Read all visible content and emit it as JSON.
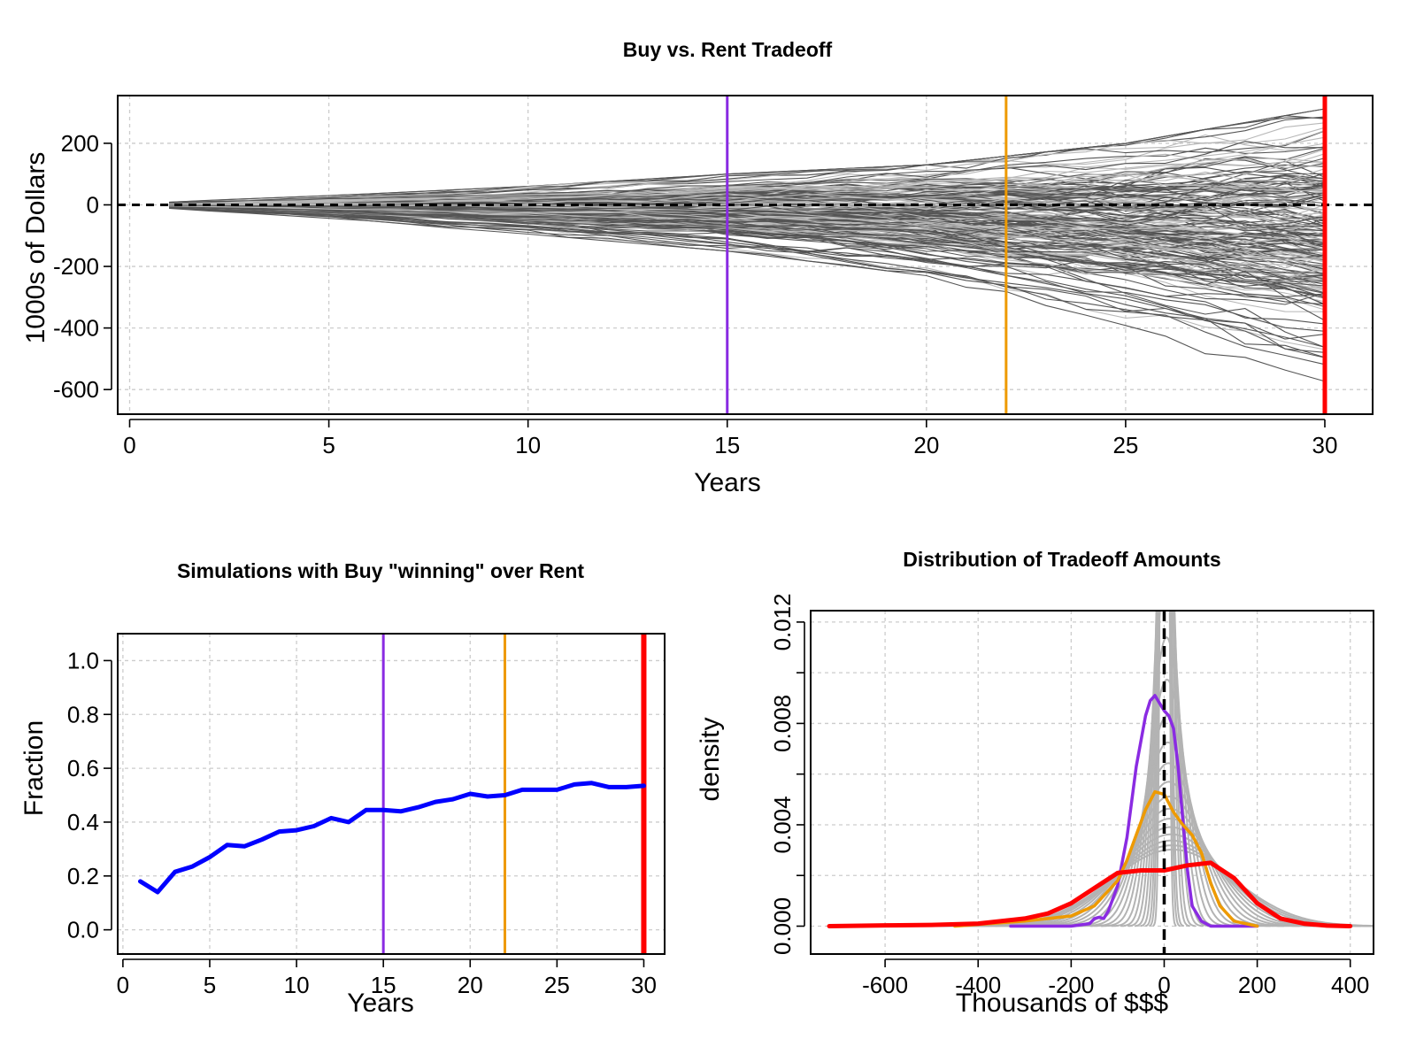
{
  "colors": {
    "purple": "#8a2be2",
    "orange": "#ee9a00",
    "red": "#ff0000",
    "blue": "#0000ff",
    "sim_dark": "#555555",
    "sim_light": "#b8b8b8",
    "density_gray": "#b3b3b3",
    "grid": "#cccccc"
  },
  "chart_data": [
    {
      "id": "tradeoff",
      "type": "line",
      "title": "Buy vs. Rent Tradeoff",
      "xlabel": "Years",
      "ylabel": "1000s of Dollars",
      "xlim": [
        -0.3,
        31.2
      ],
      "ylim": [
        -680,
        355
      ],
      "x_ticks": [
        0,
        5,
        10,
        15,
        20,
        25,
        30
      ],
      "y_ticks": [
        200,
        0,
        -200,
        -400,
        -600
      ],
      "y_tick_labels": [
        "200",
        "0",
        "-200",
        "-400",
        "-600"
      ],
      "grid": true,
      "n_simulations": 200,
      "simulation_years": [
        1,
        30
      ],
      "envelope_p95": [
        [
          1,
          5
        ],
        [
          5,
          18
        ],
        [
          10,
          40
        ],
        [
          15,
          70
        ],
        [
          20,
          105
        ],
        [
          25,
          150
        ],
        [
          30,
          215
        ]
      ],
      "envelope_p05": [
        [
          1,
          -8
        ],
        [
          5,
          -30
        ],
        [
          10,
          -65
        ],
        [
          15,
          -105
        ],
        [
          20,
          -170
        ],
        [
          25,
          -270
        ],
        [
          30,
          -390
        ]
      ],
      "envelope_max": [
        [
          1,
          10
        ],
        [
          5,
          30
        ],
        [
          10,
          60
        ],
        [
          15,
          100
        ],
        [
          20,
          130
        ],
        [
          25,
          200
        ],
        [
          30,
          312
        ]
      ],
      "envelope_min": [
        [
          1,
          -12
        ],
        [
          5,
          -45
        ],
        [
          10,
          -95
        ],
        [
          15,
          -150
        ],
        [
          20,
          -230
        ],
        [
          25,
          -430
        ],
        [
          30,
          -620
        ]
      ],
      "reference_lines": [
        {
          "axis": "y",
          "value": 0,
          "style": "dashed",
          "color": "#000000"
        },
        {
          "axis": "x",
          "value": 15,
          "color": "#8a2be2"
        },
        {
          "axis": "x",
          "value": 22,
          "color": "#ee9a00"
        },
        {
          "axis": "x",
          "value": 30,
          "color": "#ff0000"
        }
      ]
    },
    {
      "id": "fraction",
      "type": "line",
      "title": "Simulations with Buy \"winning\" over Rent",
      "xlabel": "Years",
      "ylabel": "Fraction",
      "xlim": [
        -0.3,
        31.2
      ],
      "ylim": [
        -0.09,
        1.1
      ],
      "x_ticks": [
        0,
        5,
        10,
        15,
        20,
        25,
        30
      ],
      "y_ticks": [
        0.0,
        0.2,
        0.4,
        0.6,
        0.8,
        1.0
      ],
      "y_tick_labels": [
        "0.0",
        "0.2",
        "0.4",
        "0.6",
        "0.8",
        "1.0"
      ],
      "grid": true,
      "series": [
        {
          "color": "#0000ff",
          "x": [
            1,
            2,
            3,
            4,
            5,
            6,
            7,
            8,
            9,
            10,
            11,
            12,
            13,
            14,
            15,
            16,
            17,
            18,
            19,
            20,
            21,
            22,
            23,
            24,
            25,
            26,
            27,
            28,
            29,
            30
          ],
          "y": [
            0.18,
            0.14,
            0.215,
            0.235,
            0.27,
            0.315,
            0.31,
            0.335,
            0.365,
            0.37,
            0.385,
            0.415,
            0.4,
            0.445,
            0.445,
            0.44,
            0.455,
            0.475,
            0.485,
            0.505,
            0.495,
            0.5,
            0.52,
            0.52,
            0.52,
            0.54,
            0.545,
            0.53,
            0.53,
            0.535
          ]
        }
      ],
      "reference_lines": [
        {
          "axis": "x",
          "value": 15,
          "color": "#8a2be2"
        },
        {
          "axis": "x",
          "value": 22,
          "color": "#ee9a00"
        },
        {
          "axis": "x",
          "value": 30,
          "color": "#ff0000"
        }
      ]
    },
    {
      "id": "density",
      "type": "line",
      "title": "Distribution of Tradeoff Amounts",
      "xlabel": "Thousands of $$$",
      "ylabel": "density",
      "xlim": [
        -760,
        450
      ],
      "ylim": [
        -0.0011,
        0.01245
      ],
      "x_ticks": [
        -600,
        -400,
        -200,
        0,
        200,
        400
      ],
      "x_tick_labels": [
        "-600",
        "-400",
        "-200",
        "0",
        "200",
        "400"
      ],
      "y_ticks": [
        0.0,
        0.002,
        0.004,
        0.006,
        0.008,
        0.01,
        0.012
      ],
      "y_tick_labels": [
        "0.000",
        "0.004",
        "0.008",
        "0.012"
      ],
      "y_labeled_ticks": [
        0.0,
        0.004,
        0.008,
        0.012
      ],
      "grid": true,
      "gray_curve_sds": [
        6,
        8,
        10,
        13,
        16,
        20,
        24,
        29,
        35,
        41,
        48,
        55,
        62,
        70,
        78,
        86,
        94,
        102,
        110,
        118,
        125,
        132
      ],
      "gray_curve_means": [
        1,
        1,
        1,
        2,
        2,
        3,
        3,
        4,
        5,
        6,
        7,
        8,
        9,
        10,
        11,
        12,
        13,
        14,
        15,
        16,
        17,
        18
      ],
      "series": [
        {
          "color": "#8a2be2",
          "x": [
            -330,
            -200,
            -160,
            -150,
            -140,
            -130,
            -120,
            -100,
            -80,
            -60,
            -40,
            -30,
            -20,
            -10,
            0,
            10,
            20,
            30,
            40,
            50,
            60,
            80,
            100,
            200
          ],
          "y": [
            0,
            0,
            0.0001,
            0.0003,
            0.00035,
            0.0003,
            0.0006,
            0.0016,
            0.0035,
            0.0063,
            0.0083,
            0.0089,
            0.0091,
            0.0088,
            0.0085,
            0.0083,
            0.0078,
            0.0063,
            0.0042,
            0.0022,
            0.0008,
            0.0002,
            0,
            0
          ]
        },
        {
          "color": "#ee9a00",
          "x": [
            -450,
            -300,
            -200,
            -150,
            -100,
            -80,
            -60,
            -40,
            -20,
            0,
            20,
            40,
            60,
            80,
            100,
            120,
            150,
            200
          ],
          "y": [
            0,
            0.0002,
            0.0004,
            0.0008,
            0.0018,
            0.0026,
            0.0036,
            0.0046,
            0.0053,
            0.0052,
            0.0045,
            0.004,
            0.0036,
            0.0029,
            0.0017,
            0.0008,
            0.0002,
            0
          ]
        },
        {
          "color": "#ff0000",
          "x": [
            -720,
            -600,
            -500,
            -400,
            -300,
            -250,
            -200,
            -150,
            -100,
            -50,
            0,
            50,
            100,
            150,
            200,
            250,
            300,
            350,
            400
          ],
          "y": [
            0,
            3e-05,
            5e-05,
            0.0001,
            0.0003,
            0.0005,
            0.0009,
            0.0015,
            0.0021,
            0.0022,
            0.0022,
            0.0024,
            0.0025,
            0.0019,
            0.0009,
            0.0003,
            0.0001,
            2e-05,
            0
          ]
        }
      ],
      "reference_lines": [
        {
          "axis": "x",
          "value": 0,
          "style": "dashed",
          "color": "#000000"
        }
      ]
    }
  ]
}
